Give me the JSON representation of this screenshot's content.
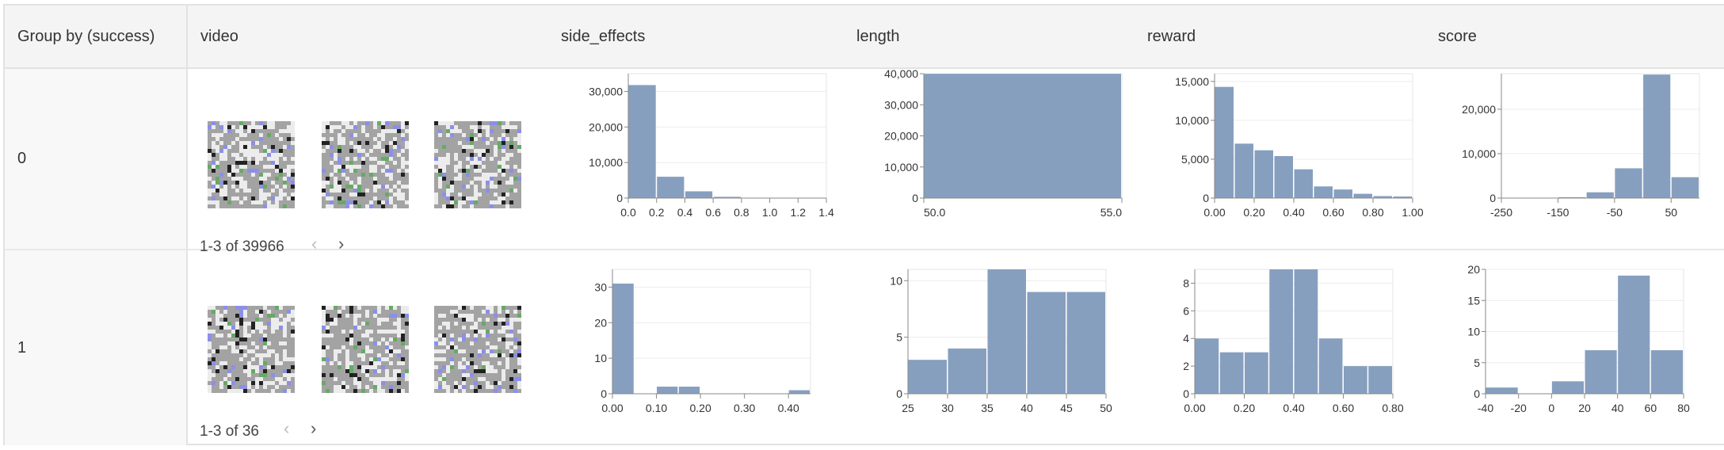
{
  "columns": [
    "Group by (success)",
    "video",
    "side_effects",
    "length",
    "reward",
    "score"
  ],
  "bar_color": "#879fbf",
  "rows": [
    {
      "group": "0",
      "video": {
        "pager": "1-3 of 39966",
        "prev_icon": "chevron-left-icon",
        "next_icon": "chevron-right-icon"
      },
      "charts": [
        {
          "type": "bar",
          "column": "side_effects",
          "bins": [
            [
              0,
              0.2
            ],
            [
              0.2,
              0.4
            ],
            [
              0.4,
              0.6
            ],
            [
              0.6,
              0.8
            ],
            [
              0.8,
              1.0
            ],
            [
              1.0,
              1.2
            ],
            [
              1.2,
              1.4
            ]
          ],
          "values": [
            31800,
            6000,
            1900,
            350,
            60,
            15,
            5
          ],
          "xlim": [
            0,
            1.4
          ],
          "ylim": [
            0,
            35000
          ],
          "xticks": [
            "0.0",
            "0.2",
            "0.4",
            "0.6",
            "0.8",
            "1.0",
            "1.2",
            "1.4"
          ],
          "xtick_values": [
            0,
            0.2,
            0.4,
            0.6,
            0.8,
            1.0,
            1.2,
            1.4
          ],
          "yticks": [
            "0",
            "10,000",
            "20,000",
            "30,000"
          ],
          "ytick_values": [
            0,
            10000,
            20000,
            30000
          ],
          "grid": true
        },
        {
          "type": "bar",
          "column": "length",
          "bins": [
            [
              50,
              55
            ]
          ],
          "values": [
            39966
          ],
          "xlim": [
            50,
            55
          ],
          "ylim": [
            0,
            40000
          ],
          "xticks": [
            "50.0",
            "55.0"
          ],
          "xtick_values": [
            50,
            55
          ],
          "yticks": [
            "0",
            "10,000",
            "20,000",
            "30,000",
            "40,000"
          ],
          "ytick_values": [
            0,
            10000,
            20000,
            30000,
            40000
          ],
          "grid": true
        },
        {
          "type": "bar",
          "column": "reward",
          "bins": [
            [
              0,
              0.1
            ],
            [
              0.1,
              0.2
            ],
            [
              0.2,
              0.3
            ],
            [
              0.3,
              0.4
            ],
            [
              0.4,
              0.5
            ],
            [
              0.5,
              0.6
            ],
            [
              0.6,
              0.7
            ],
            [
              0.7,
              0.8
            ],
            [
              0.8,
              0.9
            ],
            [
              0.9,
              1.0
            ]
          ],
          "values": [
            14300,
            7000,
            6150,
            5400,
            3700,
            1500,
            1100,
            550,
            250,
            200
          ],
          "xlim": [
            0,
            1.0
          ],
          "ylim": [
            0,
            16000
          ],
          "xticks": [
            "0.00",
            "0.20",
            "0.40",
            "0.60",
            "0.80",
            "1.00"
          ],
          "xtick_values": [
            0,
            0.2,
            0.4,
            0.6,
            0.8,
            1.0
          ],
          "yticks": [
            "0",
            "5,000",
            "10,000",
            "15,000"
          ],
          "ytick_values": [
            0,
            5000,
            10000,
            15000
          ],
          "grid": true
        },
        {
          "type": "bar",
          "column": "score",
          "bins": [
            [
              -250,
              -200
            ],
            [
              -200,
              -150
            ],
            [
              -150,
              -100
            ],
            [
              -100,
              -50
            ],
            [
              -50,
              0
            ],
            [
              0,
              50
            ],
            [
              50,
              100
            ]
          ],
          "values": [
            40,
            60,
            200,
            1300,
            6700,
            27800,
            4700
          ],
          "xlim": [
            -250,
            100
          ],
          "ylim": [
            0,
            28000
          ],
          "xticks": [
            "-250",
            "-150",
            "-50",
            "50"
          ],
          "xtick_values": [
            -250,
            -150,
            -50,
            50
          ],
          "yticks": [
            "0",
            "10,000",
            "20,000"
          ],
          "ytick_values": [
            0,
            10000,
            20000
          ],
          "grid": true
        }
      ]
    },
    {
      "group": "1",
      "video": {
        "pager": "1-3 of 36",
        "prev_icon": "chevron-left-icon",
        "next_icon": "chevron-right-icon"
      },
      "charts": [
        {
          "type": "bar",
          "column": "side_effects",
          "bins": [
            [
              0,
              0.05
            ],
            [
              0.05,
              0.1
            ],
            [
              0.1,
              0.15
            ],
            [
              0.15,
              0.2
            ],
            [
              0.2,
              0.25
            ],
            [
              0.25,
              0.3
            ],
            [
              0.3,
              0.35
            ],
            [
              0.35,
              0.4
            ],
            [
              0.4,
              0.45
            ]
          ],
          "values": [
            31,
            0,
            2,
            2,
            0,
            0,
            0,
            0,
            1
          ],
          "xlim": [
            0,
            0.45
          ],
          "ylim": [
            0,
            35
          ],
          "xticks": [
            "0.00",
            "0.10",
            "0.20",
            "0.30",
            "0.40"
          ],
          "xtick_values": [
            0,
            0.1,
            0.2,
            0.3,
            0.4
          ],
          "yticks": [
            "0",
            "10",
            "20",
            "30"
          ],
          "ytick_values": [
            0,
            10,
            20,
            30
          ],
          "grid": true
        },
        {
          "type": "bar",
          "column": "length",
          "bins": [
            [
              25,
              30
            ],
            [
              30,
              35
            ],
            [
              35,
              40
            ],
            [
              40,
              45
            ],
            [
              45,
              50
            ]
          ],
          "values": [
            3,
            4,
            11,
            9,
            9
          ],
          "xlim": [
            25,
            50
          ],
          "ylim": [
            0,
            11
          ],
          "xticks": [
            "25",
            "30",
            "35",
            "40",
            "45",
            "50"
          ],
          "xtick_values": [
            25,
            30,
            35,
            40,
            45,
            50
          ],
          "yticks": [
            "0",
            "5",
            "10"
          ],
          "ytick_values": [
            0,
            5,
            10
          ],
          "grid": true
        },
        {
          "type": "bar",
          "column": "reward",
          "bins": [
            [
              0,
              0.1
            ],
            [
              0.1,
              0.2
            ],
            [
              0.2,
              0.3
            ],
            [
              0.3,
              0.4
            ],
            [
              0.4,
              0.5
            ],
            [
              0.5,
              0.6
            ],
            [
              0.6,
              0.7
            ],
            [
              0.7,
              0.8
            ]
          ],
          "values": [
            4,
            3,
            3,
            9,
            9,
            4,
            2,
            2
          ],
          "xlim": [
            0,
            0.8
          ],
          "ylim": [
            0,
            9
          ],
          "xticks": [
            "0.00",
            "0.20",
            "0.40",
            "0.60",
            "0.80"
          ],
          "xtick_values": [
            0,
            0.2,
            0.4,
            0.6,
            0.8
          ],
          "yticks": [
            "0",
            "2",
            "4",
            "6",
            "8"
          ],
          "ytick_values": [
            0,
            2,
            4,
            6,
            8
          ],
          "grid": true
        },
        {
          "type": "bar",
          "column": "score",
          "bins": [
            [
              -40,
              -20
            ],
            [
              -20,
              0
            ],
            [
              0,
              20
            ],
            [
              20,
              40
            ],
            [
              40,
              60
            ],
            [
              60,
              80
            ]
          ],
          "values": [
            1,
            0,
            2,
            7,
            19,
            7
          ],
          "xlim": [
            -40,
            80
          ],
          "ylim": [
            0,
            20
          ],
          "xticks": [
            "-40",
            "-20",
            "0",
            "20",
            "40",
            "60",
            "80"
          ],
          "xtick_values": [
            -40,
            -20,
            0,
            20,
            40,
            60,
            80
          ],
          "yticks": [
            "0",
            "5",
            "10",
            "15",
            "20"
          ],
          "ytick_values": [
            0,
            5,
            10,
            15,
            20
          ],
          "grid": true
        }
      ]
    }
  ]
}
